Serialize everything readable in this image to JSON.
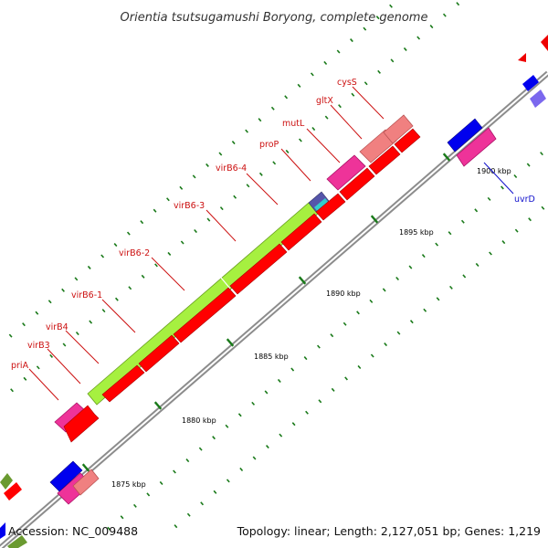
{
  "title": "Orientia tsutsugamushi Boryong, complete genome",
  "footer": {
    "accession": "Accession: NC_009488",
    "summary": "Topology: linear; Length: 2,127,051 bp; Genes: 1,219"
  },
  "colors": {
    "backbone": "#8c8c8c",
    "tick": "#1a7a1a",
    "gene_label_red": "#cc1111",
    "gene_label_blue": "#1111cc",
    "cds_red": "#ff0000",
    "green_block": "#a6f040",
    "magenta": "#ee3399",
    "salmon": "#f08080",
    "blue": "#0000ee",
    "olive": "#6a9a30"
  },
  "kbp_labels": [
    "1875 kbp",
    "1880 kbp",
    "1885 kbp",
    "1890 kbp",
    "1895 kbp",
    "1900 kbp"
  ],
  "gene_labels": [
    "priA",
    "virB3",
    "virB4",
    "virB6-1",
    "virB6-2",
    "virB6-3",
    "virB6-4",
    "proP",
    "mutL",
    "gltX",
    "cysS",
    "uvrD"
  ]
}
